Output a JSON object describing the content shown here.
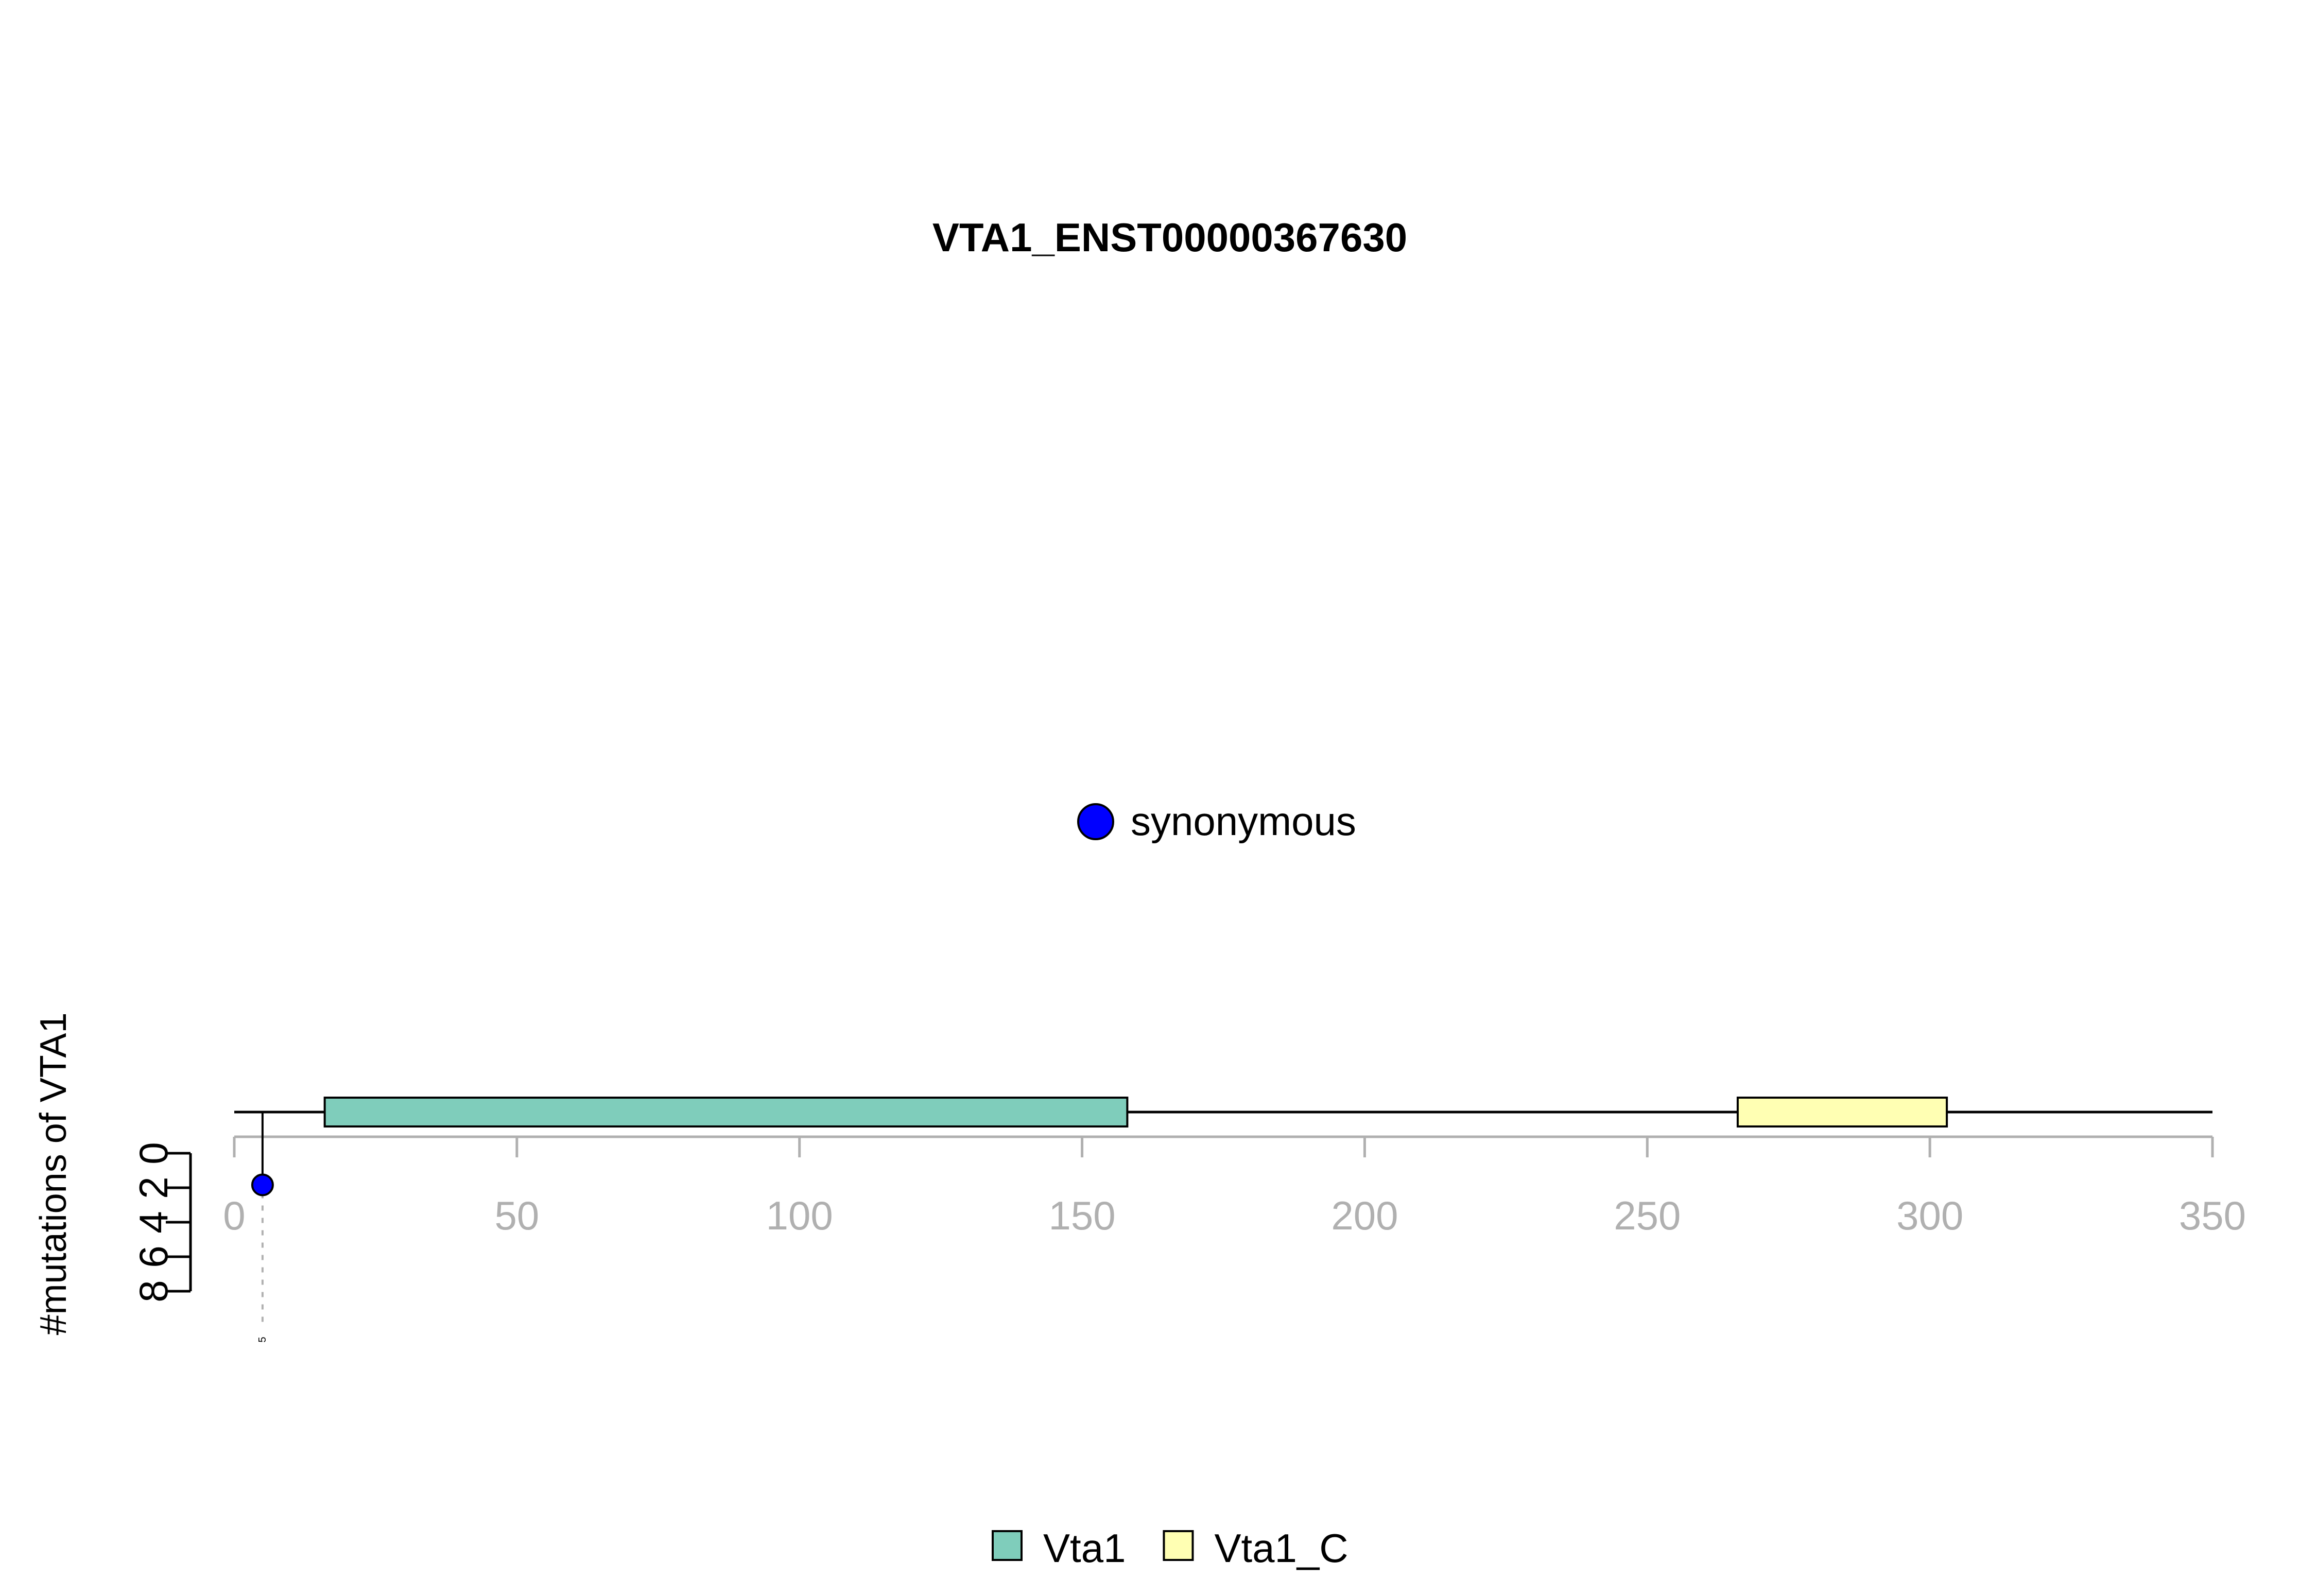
{
  "chart_data": {
    "type": "lollipop",
    "title": "VTA1_ENST00000367630",
    "ylabel": "#mutations of VTA1",
    "protein_length": 350,
    "xlim": [
      0,
      350
    ],
    "x_ticks": [
      0,
      50,
      100,
      150,
      200,
      250,
      300,
      350
    ],
    "ylim": [
      0,
      8
    ],
    "y_ticks": [
      0,
      2,
      4,
      6,
      8
    ],
    "domains": [
      {
        "name": "Vta1",
        "start": 16,
        "end": 158,
        "color": "#7FCDBB"
      },
      {
        "name": "Vta1_C",
        "start": 266,
        "end": 303,
        "color": "#FFFFB3"
      }
    ],
    "mutations": [
      {
        "position": 5,
        "count": 1,
        "type": "synonymous",
        "color": "#0000FF",
        "label": "5"
      }
    ],
    "mutation_legend": [
      {
        "label": "synonymous",
        "color": "#0000FF"
      }
    ],
    "domain_legend": [
      {
        "label": "Vta1",
        "color": "#7FCDBB"
      },
      {
        "label": "Vta1_C",
        "color": "#FFFFB3"
      }
    ]
  }
}
